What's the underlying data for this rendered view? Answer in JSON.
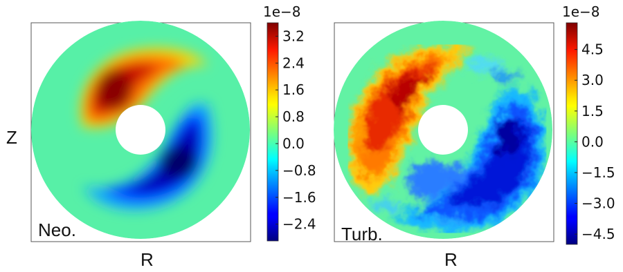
{
  "chart_data": [
    {
      "type": "heatmap",
      "title": "",
      "xlabel": "R",
      "ylabel": "Z",
      "panel_label": "Neo.",
      "colorbar": {
        "exponent_label": "1e−8",
        "range": [
          -2.9,
          3.6
        ],
        "ticks": [
          3.2,
          2.4,
          1.6,
          0.8,
          0.0,
          -0.8,
          -1.6,
          -2.4
        ],
        "tick_labels": [
          "3.2",
          "2.4",
          "1.6",
          "0.8",
          "0.0",
          "−0.8",
          "−1.6",
          "−2.4"
        ],
        "colormap": "jet"
      },
      "field": {
        "positive_lobe": 3.4,
        "negative_lobe": -2.8,
        "edge": 0.0
      }
    },
    {
      "type": "heatmap",
      "title": "",
      "xlabel": "R",
      "ylabel": "",
      "panel_label": "Turb.",
      "colorbar": {
        "exponent_label": "1e−8",
        "range": [
          -5.0,
          5.8
        ],
        "ticks": [
          4.5,
          3.0,
          1.5,
          0.0,
          -1.5,
          -3.0,
          -4.5
        ],
        "tick_labels": [
          "4.5",
          "3.0",
          "1.5",
          "0.0",
          "−1.5",
          "−3.0",
          "−4.5"
        ],
        "colormap": "jet"
      },
      "field": {
        "positive_lobe": 4.0,
        "negative_lobe": -3.8,
        "edge": 0.0,
        "turbulent": true
      }
    }
  ]
}
